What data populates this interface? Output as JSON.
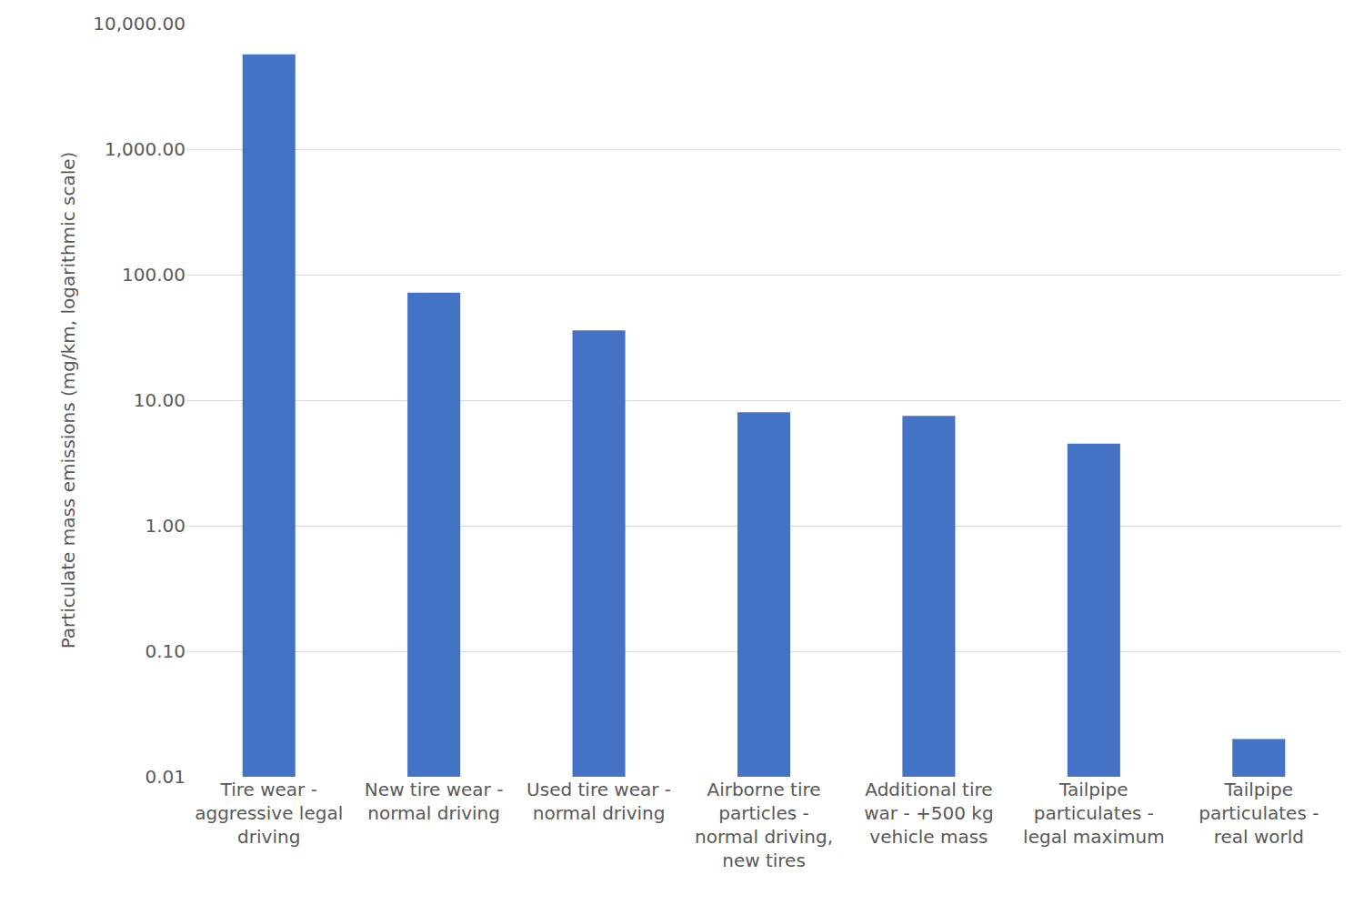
{
  "chart_data": {
    "type": "bar",
    "y_label": "Particulate mass emissions (mg/km, logarithmic scale)",
    "categories": [
      "Tire wear - aggressive legal driving",
      "New tire wear - normal driving",
      "Used tire wear - normal driving",
      "Airborne tire particles - normal driving, new tires",
      "Additional tire war - +500 kg vehicle mass",
      "Tailpipe particulates - legal maximum",
      "Tailpipe particulates - real world"
    ],
    "values": [
      5700,
      72,
      36,
      8,
      7.5,
      4.5,
      0.02
    ],
    "color": "#4472c4",
    "log": "y",
    "ylim": [
      0.01,
      10000
    ],
    "yticks": [
      {
        "value": 0.01,
        "label": "0.01"
      },
      {
        "value": 0.1,
        "label": "0.10"
      },
      {
        "value": 1,
        "label": "1.00"
      },
      {
        "value": 10,
        "label": "10.00"
      },
      {
        "value": 100,
        "label": "100.00"
      },
      {
        "value": 1000,
        "label": "1,000.00"
      },
      {
        "value": 10000,
        "label": "10,000.00"
      }
    ],
    "grid": true
  }
}
